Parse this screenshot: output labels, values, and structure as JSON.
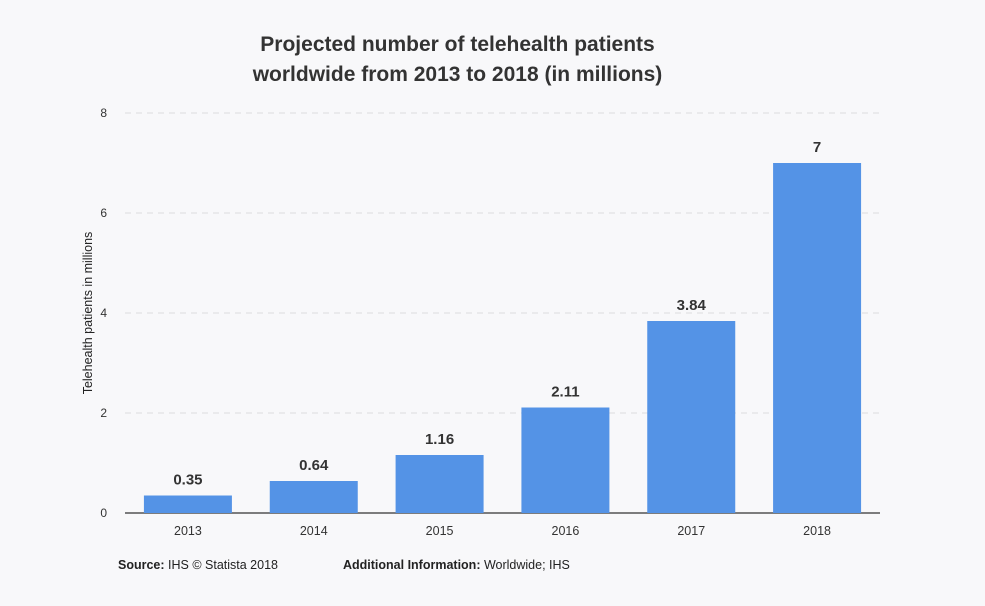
{
  "chart_data": {
    "type": "bar",
    "title_lines": [
      "Projected number of telehealth patients",
      "worldwide from 2013 to 2018 (in millions)"
    ],
    "categories": [
      "2013",
      "2014",
      "2015",
      "2016",
      "2017",
      "2018"
    ],
    "values": [
      0.35,
      0.64,
      1.16,
      2.11,
      3.84,
      7
    ],
    "value_labels": [
      "0.35",
      "0.64",
      "1.16",
      "2.11",
      "3.84",
      "7"
    ],
    "ylabel": "Telehealth patients in millions",
    "xlabel": "",
    "ylim": [
      0,
      8
    ],
    "yticks": [
      0,
      2,
      4,
      6,
      8
    ],
    "grid": true,
    "bar_color": "#5493e6",
    "grid_color": "#dddddd",
    "axis_color": "#333333"
  },
  "footer": {
    "source_label": "Source:",
    "source_text": " IHS © Statista 2018",
    "info_label": "Additional Information:",
    "info_text": " Worldwide; IHS"
  }
}
